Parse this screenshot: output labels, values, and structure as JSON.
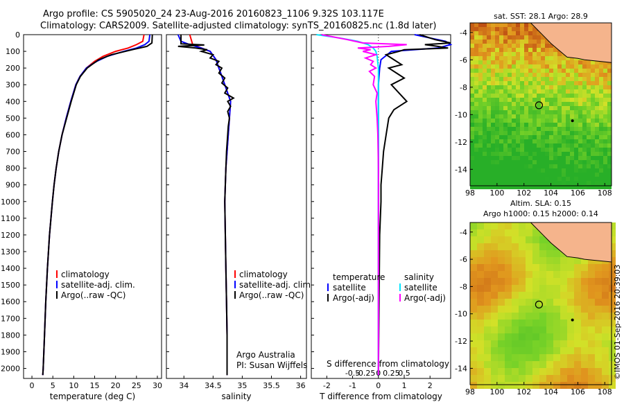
{
  "header": {
    "line1": "Argo profile: CS 5905020_24 23-Aug-2016 20160823_1106 9.32S 103.117E",
    "line2": "Climatology: CARS2009. Satellite-adjusted climatology: synTS_20160825.nc (1.8d later)"
  },
  "watermark": "©IMOS 01-Sep-2016 20:39:03",
  "colors": {
    "climatology": "#ff0000",
    "satellite": "#0000ff",
    "argo": "#000000",
    "sat_salinity": "#00e5ff",
    "argo_salinity": "#ff00ff",
    "land": "#f5b48c"
  },
  "chart_data": [
    {
      "type": "line",
      "id": "temperature",
      "xlabel": "temperature (deg C)",
      "ylabel": "",
      "xlim": [
        -2,
        31
      ],
      "ylim": [
        2060,
        0
      ],
      "xticks": [
        "0",
        "5",
        "10",
        "15",
        "20",
        "25",
        "30"
      ],
      "xtick_values": [
        0,
        5,
        10,
        15,
        20,
        25,
        30
      ],
      "yticks": [
        "0",
        "100",
        "200",
        "300",
        "400",
        "500",
        "600",
        "700",
        "800",
        "900",
        "1000",
        "1100",
        "1200",
        "1300",
        "1400",
        "1500",
        "1600",
        "1700",
        "1800",
        "1900",
        "2000"
      ],
      "legend": [
        "climatology",
        "satellite-adj. clim.",
        "Argo(..raw -QC)"
      ],
      "series": [
        {
          "name": "climatology",
          "depth": [
            0,
            40,
            60,
            80,
            100,
            130,
            160,
            180,
            200,
            250,
            300,
            400,
            500,
            600,
            700,
            800,
            900,
            1000,
            1200,
            1400,
            1600,
            1800,
            2000,
            2040
          ],
          "values": [
            26.8,
            26.5,
            25,
            23,
            20,
            17,
            15,
            14,
            13,
            11.5,
            10.5,
            9.3,
            8.2,
            7.2,
            6.4,
            5.8,
            5.3,
            4.9,
            4.2,
            3.7,
            3.3,
            3.0,
            2.7,
            2.6
          ]
        },
        {
          "name": "satellite-adj. clim.",
          "depth": [
            0,
            40,
            60,
            80,
            100,
            130,
            160,
            180,
            200,
            250,
            300,
            400,
            500,
            600,
            700,
            800,
            900,
            1000,
            1200,
            1400,
            1600,
            1800,
            2000,
            2040
          ],
          "values": [
            28.2,
            28,
            27,
            25,
            22,
            18,
            15.5,
            14.2,
            13,
            11.5,
            10.5,
            9.3,
            8.2,
            7.2,
            6.4,
            5.8,
            5.3,
            4.9,
            4.2,
            3.7,
            3.3,
            3.0,
            2.7,
            2.6
          ]
        },
        {
          "name": "Argo",
          "depth": [
            0,
            50,
            70,
            90,
            120,
            150,
            180,
            200,
            250,
            300,
            400,
            500,
            600,
            700,
            800,
            900,
            1000,
            1200,
            1400,
            1600,
            1800,
            2000,
            2040
          ],
          "values": [
            28.8,
            28.7,
            27.5,
            24,
            19,
            16,
            14.3,
            13.2,
            11.6,
            10.6,
            9.4,
            8.3,
            7.2,
            6.4,
            5.8,
            5.3,
            4.9,
            4.2,
            3.7,
            3.3,
            3.0,
            2.7,
            2.6
          ]
        }
      ]
    },
    {
      "type": "line",
      "id": "salinity",
      "xlabel": "salinity",
      "xlim": [
        33.7,
        36.1
      ],
      "ylim": [
        2060,
        0
      ],
      "xticks": [
        "34",
        "34.5",
        "35",
        "35.5",
        "36"
      ],
      "xtick_values": [
        34,
        34.5,
        35,
        35.5,
        36
      ],
      "legend": [
        "climatology",
        "satellite-adj. clim.",
        "Argo(..raw -QC)"
      ],
      "credit": [
        "Argo Australia",
        "PI: Susan Wijffels"
      ],
      "series": [
        {
          "name": "climatology",
          "depth": [
            0,
            60,
            80,
            100,
            150,
            200,
            250,
            300,
            350,
            400,
            500,
            600,
            700,
            800,
            900,
            1000,
            1200,
            1400,
            1600,
            1800,
            2000,
            2040
          ],
          "values": [
            34.1,
            34.15,
            34.3,
            34.45,
            34.55,
            34.6,
            34.65,
            34.7,
            34.75,
            34.8,
            34.78,
            34.76,
            34.74,
            34.72,
            34.71,
            34.7,
            34.71,
            34.72,
            34.73,
            34.74,
            34.74,
            34.74
          ]
        },
        {
          "name": "satellite-adj. clim.",
          "depth": [
            0,
            40,
            60,
            80,
            100,
            150,
            200,
            250,
            300,
            350,
            400,
            500,
            600,
            700,
            800,
            900,
            1000,
            1200,
            1400,
            1600,
            1800,
            2000,
            2040
          ],
          "values": [
            33.9,
            33.95,
            34.1,
            34.3,
            34.45,
            34.55,
            34.6,
            34.65,
            34.7,
            34.75,
            34.8,
            34.78,
            34.76,
            34.74,
            34.72,
            34.71,
            34.7,
            34.71,
            34.72,
            34.73,
            34.74,
            34.74,
            34.74
          ]
        },
        {
          "name": "Argo",
          "depth": [
            0,
            55,
            62,
            70,
            80,
            90,
            100,
            120,
            140,
            160,
            180,
            200,
            230,
            260,
            290,
            320,
            350,
            380,
            400,
            430,
            460,
            500,
            550,
            600,
            700,
            800,
            900,
            1000,
            1200,
            1400,
            1600,
            1800,
            2000,
            2040
          ],
          "values": [
            33.95,
            33.95,
            34.35,
            33.9,
            34.2,
            34.4,
            34.3,
            34.5,
            34.45,
            34.6,
            34.55,
            34.65,
            34.6,
            34.7,
            34.65,
            34.75,
            34.7,
            34.85,
            34.75,
            34.8,
            34.75,
            34.78,
            34.76,
            34.75,
            34.73,
            34.72,
            34.71,
            34.7,
            34.71,
            34.72,
            34.73,
            34.74,
            34.74,
            34.74
          ]
        }
      ]
    },
    {
      "type": "line",
      "id": "difference",
      "xlabel": "T difference from climatology",
      "xlabel_top": "S difference from climatology",
      "xlim": [
        -2.6,
        2.8
      ],
      "ylim": [
        2060,
        0
      ],
      "xticks": [
        "-2",
        "-1",
        "0",
        "1",
        "2"
      ],
      "xtick_values": [
        -2,
        -1,
        0,
        1,
        2
      ],
      "sticks": [
        "-0.5",
        "-0.25",
        "0",
        "0.25",
        "0.5"
      ],
      "stick_values": [
        -0.5,
        -0.25,
        0,
        0.25,
        0.5
      ],
      "legend_temperature": [
        "temperature",
        "satellite",
        "Argo(-adj)"
      ],
      "legend_salinity": [
        "salinity",
        "satellite",
        "Argo(-adj)"
      ],
      "series": [
        {
          "name": "T satellite",
          "depth": [
            0,
            20,
            40,
            60,
            80,
            100,
            150,
            200,
            300,
            400,
            600,
            800,
            1000,
            1500,
            2040
          ],
          "values": [
            1.4,
            2,
            2.6,
            2.8,
            2.3,
            0.5,
            0.1,
            0.05,
            0,
            0,
            0,
            0,
            0,
            0,
            0
          ]
        },
        {
          "name": "T Argo(-adj)",
          "depth": [
            0,
            30,
            50,
            60,
            70,
            80,
            90,
            100,
            120,
            150,
            180,
            200,
            230,
            260,
            300,
            350,
            400,
            450,
            500,
            600,
            700,
            800,
            900,
            1000,
            1200,
            1500,
            2040
          ],
          "values": [
            1.6,
            2.2,
            2.8,
            1.8,
            2.3,
            2.7,
            1,
            0.8,
            0.3,
            0.6,
            0.9,
            0.4,
            0.7,
            1,
            0.5,
            0.8,
            1.1,
            0.6,
            0.4,
            0.3,
            0.2,
            0.15,
            0.1,
            0.1,
            0.05,
            0.03,
            0
          ]
        },
        {
          "name": "S satellite",
          "depth": [
            0,
            20,
            40,
            60,
            80,
            100,
            130,
            160,
            200,
            300,
            400,
            600,
            800,
            1000,
            1500,
            2040
          ],
          "values": [
            -2.4,
            -1.5,
            -0.8,
            -0.4,
            -0.2,
            -0.1,
            -0.05,
            -0.03,
            0,
            0,
            0,
            0,
            0,
            0,
            0,
            0
          ]
        },
        {
          "name": "S Argo(-adj)",
          "depth": [
            0,
            30,
            50,
            60,
            70,
            80,
            90,
            100,
            120,
            140,
            160,
            180,
            200,
            220,
            250,
            300,
            350,
            400,
            500,
            600,
            800,
            1000,
            1500,
            2040
          ],
          "values": [
            -2.2,
            -1.2,
            -0.6,
            1.1,
            0.4,
            -0.8,
            -0.3,
            -0.6,
            -0.1,
            -0.5,
            -0.2,
            -0.3,
            -0.1,
            -0.35,
            -0.15,
            -0.2,
            -0.05,
            -0.1,
            -0.05,
            -0.02,
            0,
            0,
            0,
            0
          ]
        }
      ]
    },
    {
      "type": "heatmap",
      "id": "sst_map",
      "title": "sat. SST: 28.1  Argo: 28.9",
      "xlim": [
        98,
        108.5
      ],
      "ylim": [
        -15.2,
        -3.3
      ],
      "xticks": [
        "98",
        "100",
        "102",
        "104",
        "106",
        "108"
      ],
      "xtick_values": [
        98,
        100,
        102,
        104,
        106,
        108
      ],
      "yticks": [
        "-4",
        "-6",
        "-8",
        "-10",
        "-12",
        "-14"
      ],
      "ytick_values": [
        -4,
        -6,
        -8,
        -10,
        -12,
        -14
      ],
      "profile_location": [
        103.117,
        -9.32
      ]
    },
    {
      "type": "heatmap",
      "id": "sla_map",
      "title": "Altim. SLA: 0.15",
      "subtitle": "Argo h1000: 0.15 h2000: 0.14",
      "xlim": [
        98,
        108.5
      ],
      "ylim": [
        -15.2,
        -3.3
      ],
      "xticks": [
        "98",
        "100",
        "102",
        "104",
        "106",
        "108"
      ],
      "xtick_values": [
        98,
        100,
        102,
        104,
        106,
        108
      ],
      "yticks": [
        "-4",
        "-6",
        "-8",
        "-10",
        "-12",
        "-14"
      ],
      "ytick_values": [
        -4,
        -6,
        -8,
        -10,
        -12,
        -14
      ],
      "profile_location": [
        103.117,
        -9.32
      ]
    }
  ]
}
